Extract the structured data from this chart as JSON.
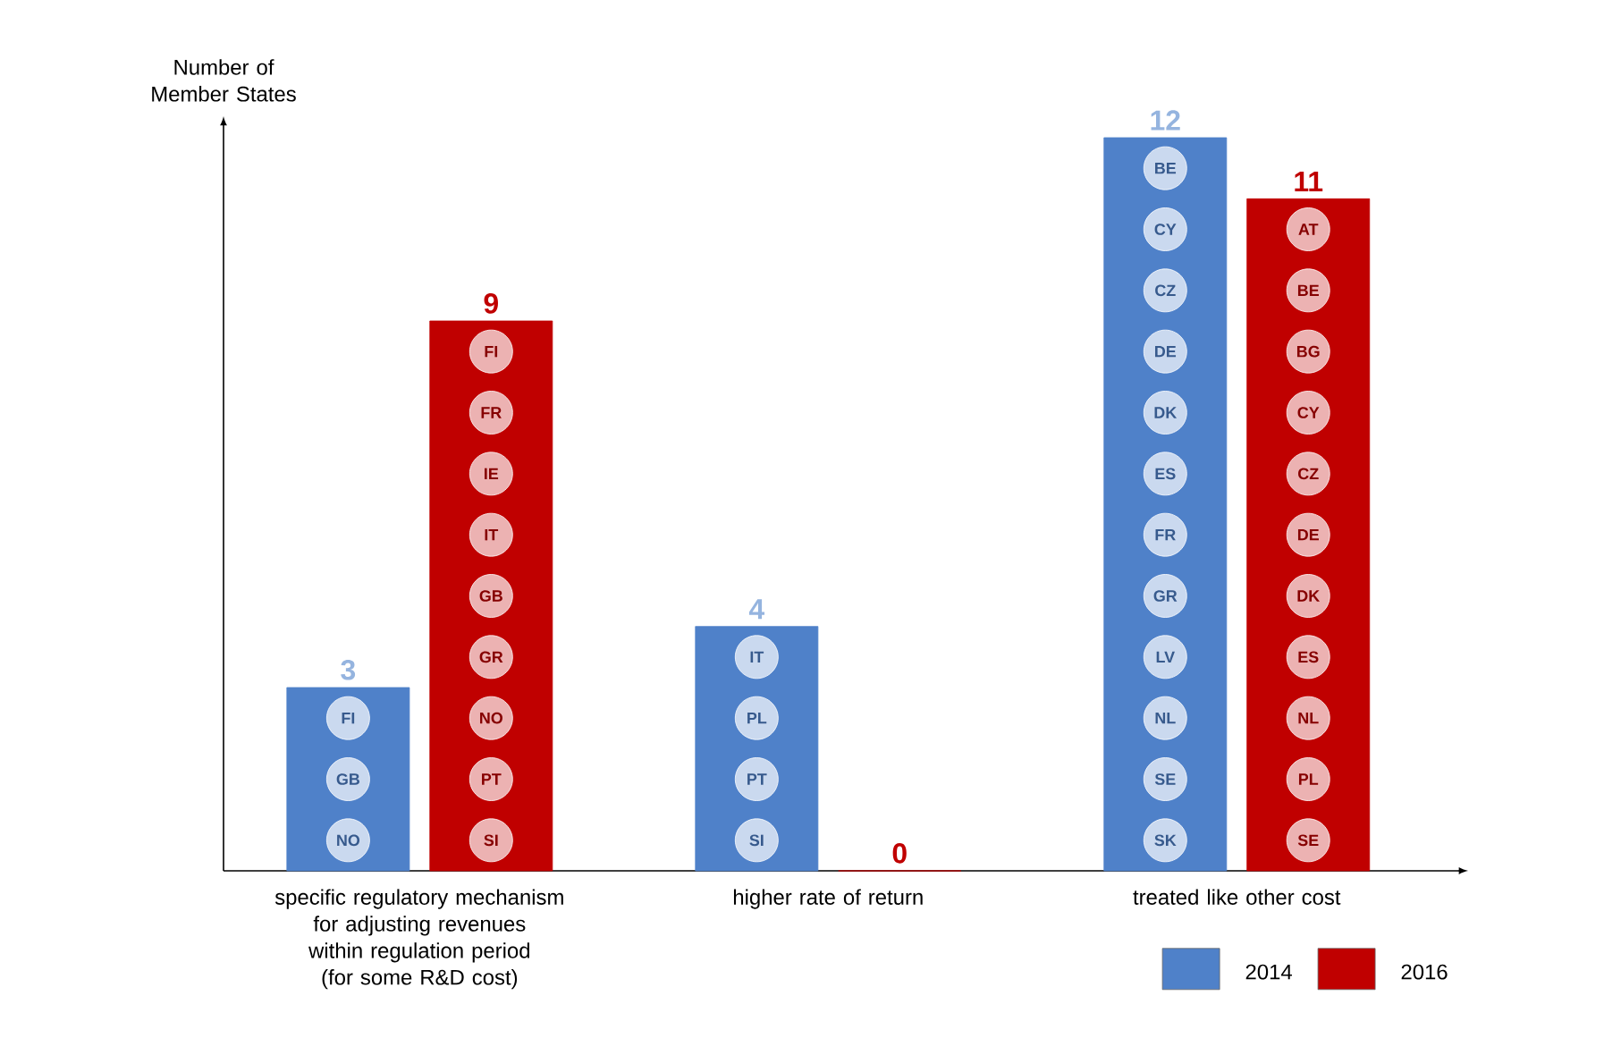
{
  "chart_data": {
    "type": "bar",
    "ylabel": "Number of Member States",
    "categories": [
      "specific regulatory mechanism for adjusting revenues within regulation period (for some R&D cost)",
      "higher rate of return",
      "treated like other cost"
    ],
    "series": [
      {
        "name": "2014",
        "color": "#4f81c9",
        "values": [
          3,
          4,
          12
        ]
      },
      {
        "name": "2016",
        "color": "#c00000",
        "values": [
          9,
          0,
          11
        ]
      }
    ],
    "data_labels": true,
    "legend": "bottom right",
    "annotations": [
      "FI",
      "GB",
      "NO",
      "FI",
      "FR",
      "IE",
      "IT",
      "GB",
      "GR",
      "NO",
      "PT",
      "SI",
      "IT",
      "PL",
      "PT",
      "SI",
      "BE",
      "CY",
      "CZ",
      "DE",
      "DK",
      "ES",
      "FR",
      "GR",
      "LV",
      "NL",
      "SE",
      "SK",
      "AT",
      "BE",
      "BG",
      "CY",
      "CZ",
      "DE",
      "DK",
      "ES",
      "NL",
      "PL",
      "SE"
    ]
  }
}
